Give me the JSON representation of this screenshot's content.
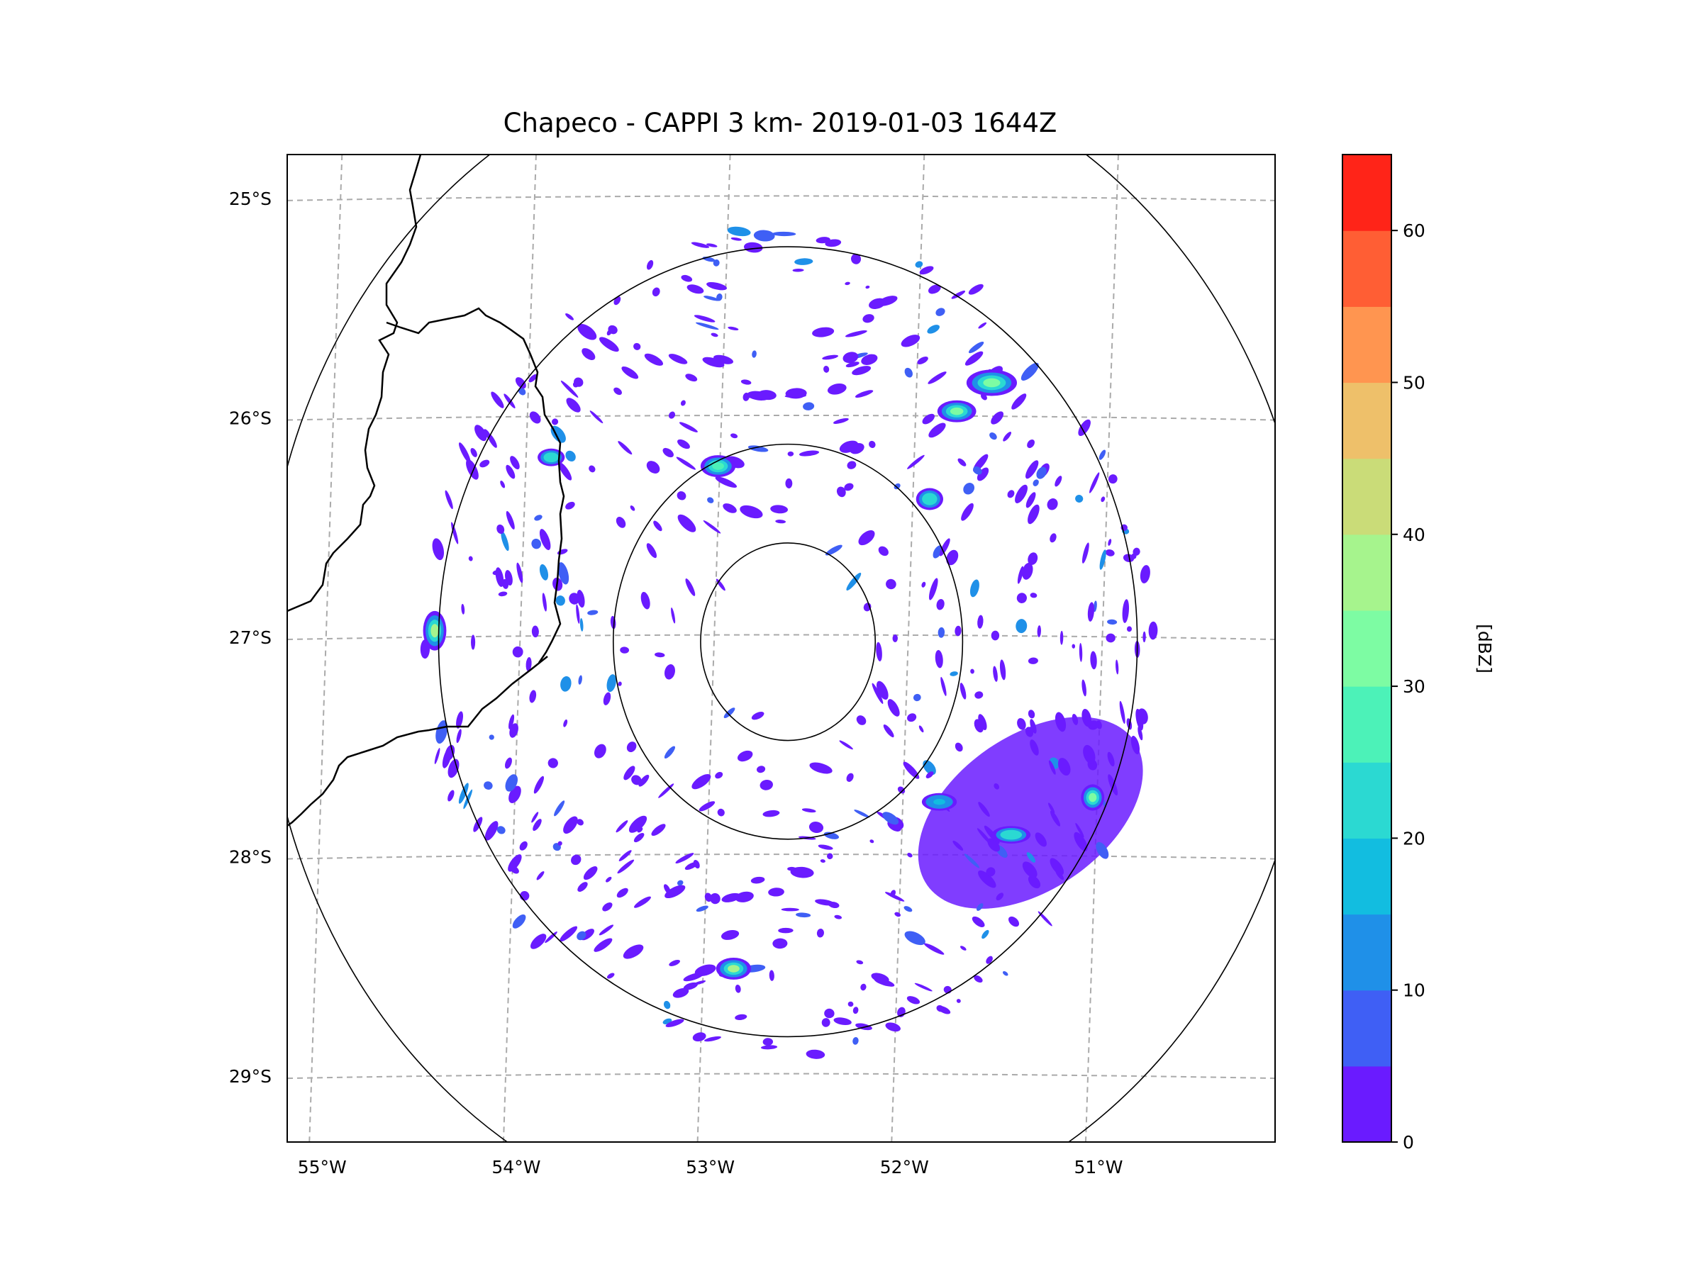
{
  "title": "Chapeco - CAPPI 3 km- 2019-01-03 1644Z",
  "map": {
    "extent": {
      "lon_min": -55.18,
      "lon_max": -50.09,
      "lat_min": -29.3,
      "lat_max": -24.8
    },
    "radar_site": {
      "lon": -52.6,
      "lat": -27.02
    },
    "range_rings": [
      {
        "name": "ring-1",
        "radius_deg": 0.45
      },
      {
        "name": "ring-2",
        "radius_deg": 0.9
      },
      {
        "name": "ring-3",
        "radius_deg": 1.8
      },
      {
        "name": "ring-4",
        "radius_deg": 2.7
      }
    ],
    "lon_ticks": [
      {
        "value": -55,
        "label": "55°W"
      },
      {
        "value": -54,
        "label": "54°W"
      },
      {
        "value": -53,
        "label": "53°W"
      },
      {
        "value": -52,
        "label": "52°W"
      },
      {
        "value": -51,
        "label": "51°W"
      }
    ],
    "lat_ticks": [
      {
        "value": -25,
        "label": "25°S"
      },
      {
        "value": -26,
        "label": "26°S"
      },
      {
        "value": -27,
        "label": "27°S"
      },
      {
        "value": -28,
        "label": "28°S"
      },
      {
        "value": -29,
        "label": "29°S"
      }
    ]
  },
  "colorbar": {
    "label": "[dBZ]",
    "min": 0,
    "max": 65,
    "step": 5,
    "colors": [
      "#6a1bff",
      "#3f5ff5",
      "#1f90e8",
      "#12bde0",
      "#2bd9d2",
      "#4cf2b8",
      "#7dfca3",
      "#a6f48d",
      "#cadc78",
      "#eec06a",
      "#ff9550",
      "#ff5e34",
      "#ff2418"
    ],
    "ticks": [
      {
        "value": 0,
        "label": "0"
      },
      {
        "value": 10,
        "label": "10"
      },
      {
        "value": 20,
        "label": "20"
      },
      {
        "value": 30,
        "label": "30"
      },
      {
        "value": 40,
        "label": "40"
      },
      {
        "value": 50,
        "label": "50"
      },
      {
        "value": 60,
        "label": "60"
      }
    ]
  },
  "echo_cells": [
    {
      "name": "echo-west-edge",
      "lon": -54.42,
      "lat": -26.97,
      "rx": 0.06,
      "ry": 0.09,
      "dbz": 35
    },
    {
      "name": "echo-south",
      "lon": -52.88,
      "lat": -28.51,
      "rx": 0.09,
      "ry": 0.05,
      "dbz": 35
    },
    {
      "name": "echo-northeast-a",
      "lon": -51.55,
      "lat": -25.84,
      "rx": 0.13,
      "ry": 0.06,
      "dbz": 32
    },
    {
      "name": "echo-northeast-b",
      "lon": -51.73,
      "lat": -25.97,
      "rx": 0.1,
      "ry": 0.05,
      "dbz": 30
    },
    {
      "name": "echo-north-center",
      "lon": -52.96,
      "lat": -26.22,
      "rx": 0.09,
      "ry": 0.05,
      "dbz": 25
    },
    {
      "name": "echo-northwest",
      "lon": -53.82,
      "lat": -26.18,
      "rx": 0.07,
      "ry": 0.04,
      "dbz": 22
    },
    {
      "name": "echo-east",
      "lon": -51.87,
      "lat": -26.37,
      "rx": 0.07,
      "ry": 0.05,
      "dbz": 22
    },
    {
      "name": "echo-southeast-a",
      "lon": -51.03,
      "lat": -27.73,
      "rx": 0.06,
      "ry": 0.06,
      "dbz": 30
    },
    {
      "name": "echo-southeast-b",
      "lon": -51.45,
      "lat": -27.9,
      "rx": 0.1,
      "ry": 0.04,
      "dbz": 22
    },
    {
      "name": "echo-southeast-c",
      "lon": -51.82,
      "lat": -27.75,
      "rx": 0.09,
      "ry": 0.04,
      "dbz": 18
    }
  ],
  "stratiform_regions": [
    {
      "name": "southeast-precip-region",
      "lon": -51.35,
      "lat": -27.8,
      "rx": 0.65,
      "ry": 0.35,
      "dbz": 2
    }
  ]
}
